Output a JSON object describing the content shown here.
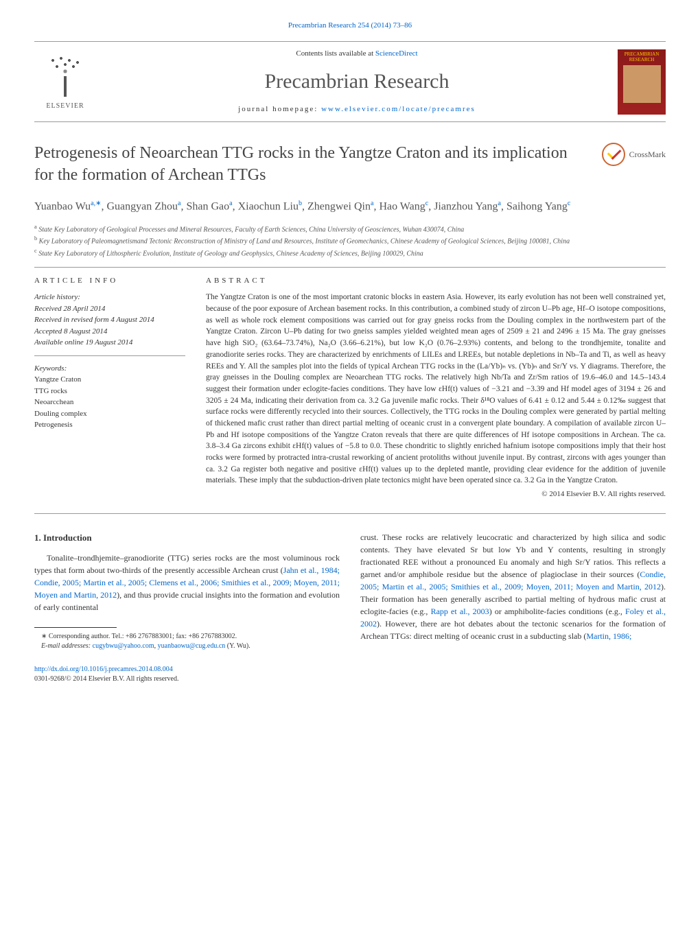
{
  "header": {
    "citation": "Precambrian Research 254 (2014) 73–86",
    "contents_prefix": "Contents lists available at ",
    "contents_link": "ScienceDirect",
    "journal_name": "Precambrian Research",
    "homepage_prefix": "journal homepage: ",
    "homepage_link": "www.elsevier.com/locate/precamres",
    "publisher": "ELSEVIER",
    "cover_title": "PRECAMBRIAN RESEARCH"
  },
  "article": {
    "title": "Petrogenesis of Neoarchean TTG rocks in the Yangtze Craton and its implication for the formation of Archean TTGs",
    "crossmark_label": "CrossMark"
  },
  "authors_html": "Yuanbao Wu<sup>a,∗</sup>, Guangyan Zhou<sup>a</sup>, Shan Gao<sup>a</sup>, Xiaochun Liu<sup>b</sup>, Zhengwei Qin<sup>a</sup>, Hao Wang<sup>c</sup>, Jianzhou Yang<sup>a</sup>, Saihong Yang<sup>c</sup>",
  "affiliations": {
    "a": "State Key Laboratory of Geological Processes and Mineral Resources, Faculty of Earth Sciences, China University of Geosciences, Wuhan 430074, China",
    "b": "Key Laboratory of Paleomagnetismand Tectonic Reconstruction of Ministry of Land and Resources, Institute of Geomechanics, Chinese Academy of Geological Sciences, Beijing 100081, China",
    "c": "State Key Laboratory of Lithospheric Evolution, Institute of Geology and Geophysics, Chinese Academy of Sciences, Beijing 100029, China"
  },
  "info": {
    "heading": "ARTICLE INFO",
    "history_label": "Article history:",
    "received": "Received 28 April 2014",
    "revised": "Received in revised form 4 August 2014",
    "accepted": "Accepted 8 August 2014",
    "online": "Available online 19 August 2014",
    "keywords_label": "Keywords:",
    "keywords": [
      "Yangtze Craton",
      "TTG rocks",
      "Neoarcchean",
      "Douling complex",
      "Petrogenesis"
    ]
  },
  "abstract": {
    "heading": "ABSTRACT",
    "text": "The Yangtze Craton is one of the most important cratonic blocks in eastern Asia. However, its early evolution has not been well constrained yet, because of the poor exposure of Archean basement rocks. In this contribution, a combined study of zircon U–Pb age, Hf–O isotope compositions, as well as whole rock element compositions was carried out for gray gneiss rocks from the Douling complex in the northwestern part of the Yangtze Craton. Zircon U–Pb dating for two gneiss samples yielded weighted mean ages of 2509 ± 21 and 2496 ± 15 Ma. The gray gneisses have high SiO₂ (63.64–73.74%), Na₂O (3.66–6.21%), but low K₂O (0.76–2.93%) contents, and belong to the trondhjemite, tonalite and granodiorite series rocks. They are characterized by enrichments of LILEs and LREEs, but notable depletions in Nb–Ta and Ti, as well as heavy REEs and Y. All the samples plot into the fields of typical Archean TTG rocks in the (La/Yb)ₙ vs. (Yb)ₙ and Sr/Y vs. Y diagrams. Therefore, the gray gneisses in the Douling complex are Neoarchean TTG rocks. The relatively high Nb/Ta and Zr/Sm ratios of 19.6–46.0 and 14.5–143.4 suggest their formation under eclogite-facies conditions. They have low εHf(t) values of −3.21 and −3.39 and Hf model ages of 3194 ± 26 and 3205 ± 24 Ma, indicating their derivation from ca. 3.2 Ga juvenile mafic rocks. Their δ¹⁸O values of 6.41 ± 0.12 and 5.44 ± 0.12‰ suggest that surface rocks were differently recycled into their sources. Collectively, the TTG rocks in the Douling complex were generated by partial melting of thickened mafic crust rather than direct partial melting of oceanic crust in a convergent plate boundary. A compilation of available zircon U–Pb and Hf isotope compositions of the Yangtze Craton reveals that there are quite differences of Hf isotope compositions in Archean. The ca. 3.8–3.4 Ga zircons exhibit εHf(t) values of −5.8 to 0.0. These chondritic to slightly enriched hafnium isotope compositions imply that their host rocks were formed by protracted intra-crustal reworking of ancient protoliths without juvenile input. By contrast, zircons with ages younger than ca. 3.2 Ga register both negative and positive εHf(t) values up to the depleted mantle, providing clear evidence for the addition of juvenile materials. These imply that the subduction-driven plate tectonics might have been operated since ca. 3.2 Ga in the Yangtze Craton.",
    "copyright": "© 2014 Elsevier B.V. All rights reserved."
  },
  "intro": {
    "heading": "1. Introduction",
    "col1_html": "Tonalite–trondhjemite–granodiorite (TTG) series rocks are the most voluminous rock types that form about two-thirds of the presently accessible Archean crust (<span class='ref-link'>Jahn et al., 1984; Condie, 2005; Martin et al., 2005; Clemens et al., 2006; Smithies et al., 2009; Moyen, 2011; Moyen and Martin, 2012</span>), and thus provide crucial insights into the formation and evolution of early continental",
    "col2_html": "crust. These rocks are relatively leucocratic and characterized by high silica and sodic contents. They have elevated Sr but low Yb and Y contents, resulting in strongly fractionated REE without a pronounced Eu anomaly and high Sr/Y ratios. This reflects a garnet and/or amphibole residue but the absence of plagioclase in their sources (<span class='ref-link'>Condie, 2005; Martin et al., 2005; Smithies et al., 2009; Moyen, 2011; Moyen and Martin, 2012</span>). Their formation has been generally ascribed to partial melting of hydrous mafic crust at eclogite-facies (e.g., <span class='ref-link'>Rapp et al., 2003</span>) or amphibolite-facies conditions (e.g., <span class='ref-link'>Foley et al., 2002</span>). However, there are hot debates about the tectonic scenarios for the formation of Archean TTGs: direct melting of oceanic crust in a subducting slab (<span class='ref-link'>Martin, 1986;</span>"
  },
  "footnotes": {
    "corresponding": "∗ Corresponding author. Tel.: +86 2767883001; fax: +86 2767883002.",
    "email_label": "E-mail addresses: ",
    "email1": "cugybwu@yahoo.com",
    "email_sep": ", ",
    "email2": "yuanbaowu@cug.edu.cn",
    "email_suffix": " (Y. Wu)."
  },
  "footer": {
    "doi": "http://dx.doi.org/10.1016/j.precamres.2014.08.004",
    "issn": "0301-9268/© 2014 Elsevier B.V. All rights reserved."
  },
  "colors": {
    "link": "#0066cc",
    "text": "#333333",
    "heading": "#444444",
    "cover_bg": "#8b1a1a",
    "cover_text": "#ffcc00",
    "crossmark_ring": "#cc6633"
  }
}
